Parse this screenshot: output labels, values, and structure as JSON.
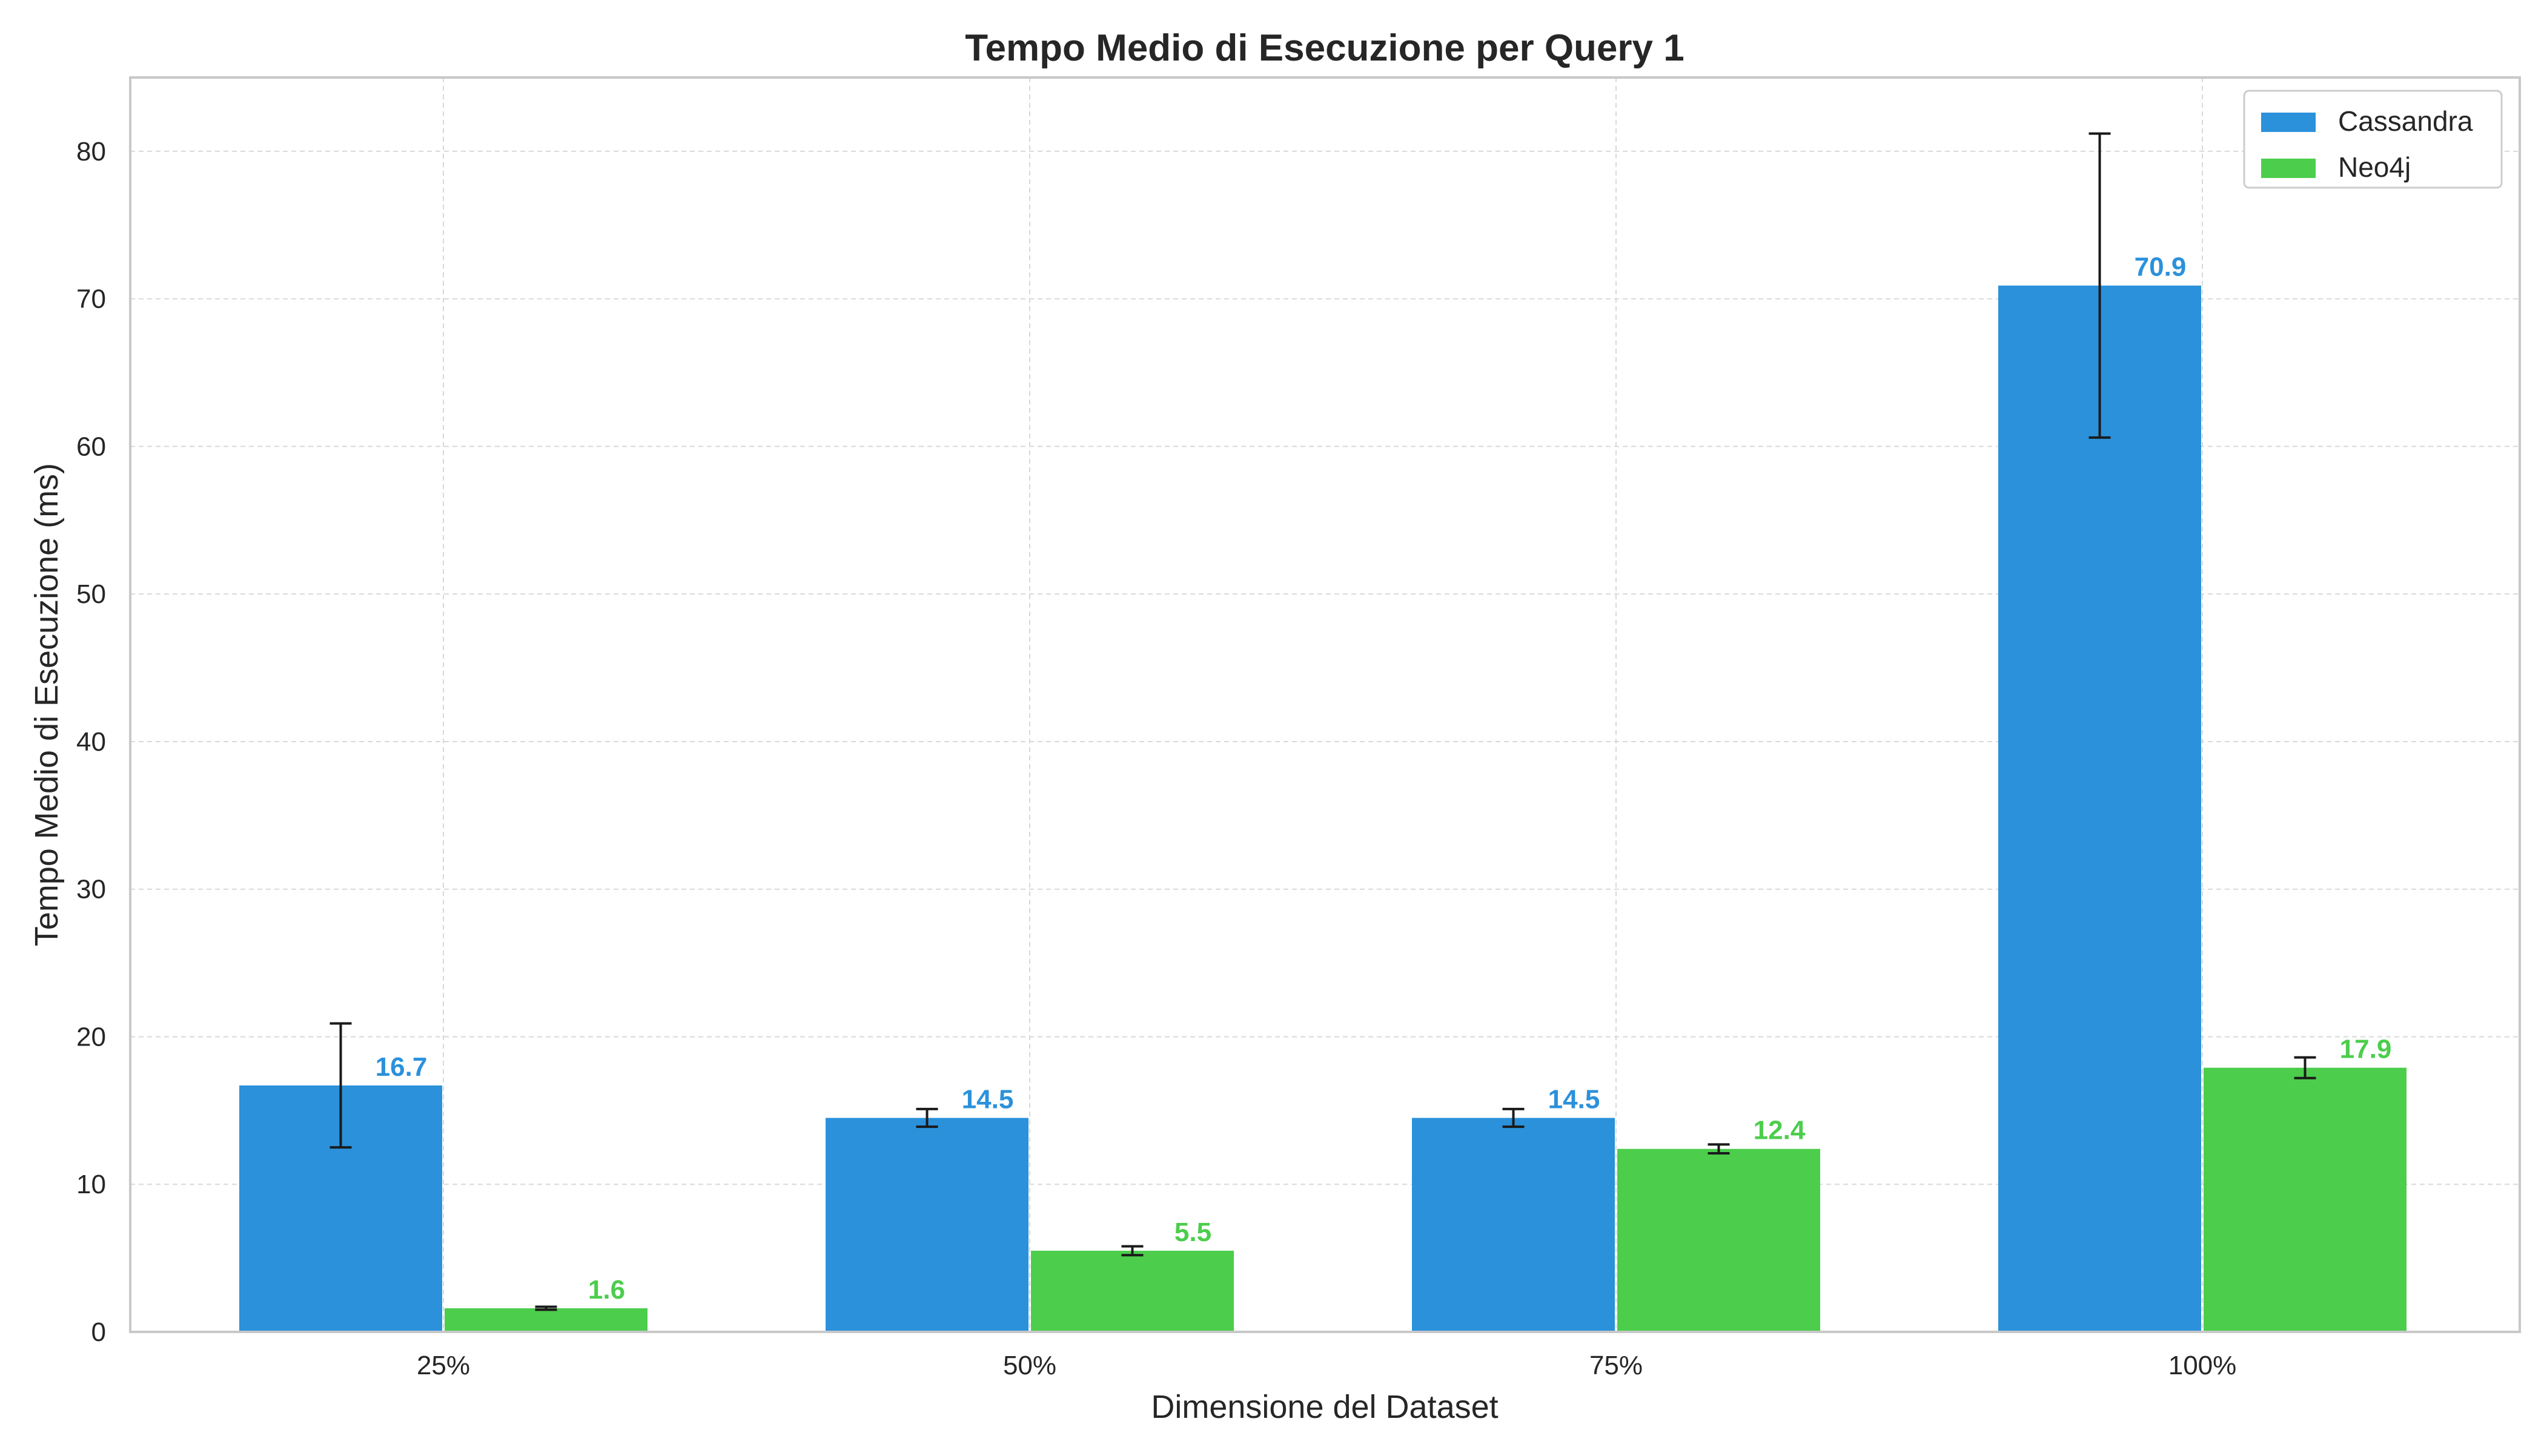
{
  "chart_data": {
    "type": "bar",
    "title": "Tempo Medio di Esecuzione per Query 1",
    "xlabel": "Dimensione del Dataset",
    "ylabel": "Tempo Medio di Esecuzione (ms)",
    "categories": [
      "25%",
      "50%",
      "75%",
      "100%"
    ],
    "ylim": [
      0,
      85
    ],
    "yticks": [
      0,
      10,
      20,
      30,
      40,
      50,
      60,
      70,
      80
    ],
    "grid": true,
    "legend_position": "top-right",
    "series": [
      {
        "name": "Cassandra",
        "color": "#2b91db",
        "values": [
          16.7,
          14.5,
          14.5,
          70.9
        ],
        "errors": [
          4.2,
          0.6,
          0.6,
          10.3
        ],
        "labels": [
          "16.7",
          "14.5",
          "14.5",
          "70.9"
        ]
      },
      {
        "name": "Neo4j",
        "color": "#4ccd4c",
        "values": [
          1.6,
          5.5,
          12.4,
          17.9
        ],
        "errors": [
          0.1,
          0.3,
          0.3,
          0.7
        ],
        "labels": [
          "1.6",
          "5.5",
          "12.4",
          "17.9"
        ]
      }
    ]
  }
}
